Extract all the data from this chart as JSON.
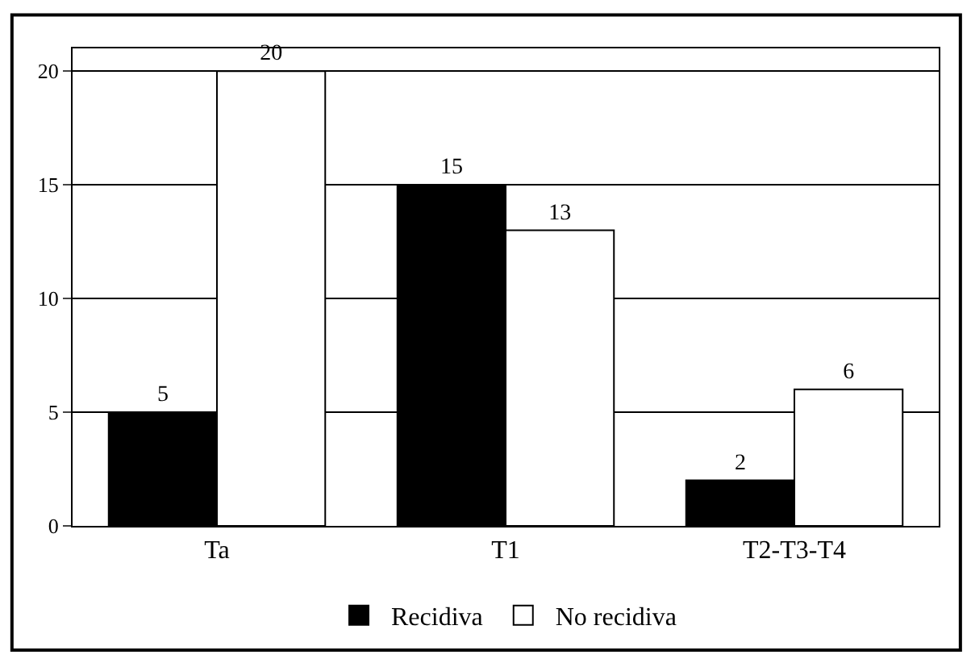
{
  "chart_data": {
    "type": "bar",
    "categories": [
      "Ta",
      "T1",
      "T2-T3-T4"
    ],
    "series": [
      {
        "name": "Recidiva",
        "color": "#000000",
        "values": [
          5,
          15,
          2
        ]
      },
      {
        "name": "No recidiva",
        "color": "#ffffff",
        "values": [
          20,
          13,
          6
        ]
      }
    ],
    "ylim": [
      0,
      21
    ],
    "yticks": [
      0,
      5,
      10,
      15,
      20
    ],
    "grid": "y",
    "legend": "bottom",
    "data_labels": true
  }
}
